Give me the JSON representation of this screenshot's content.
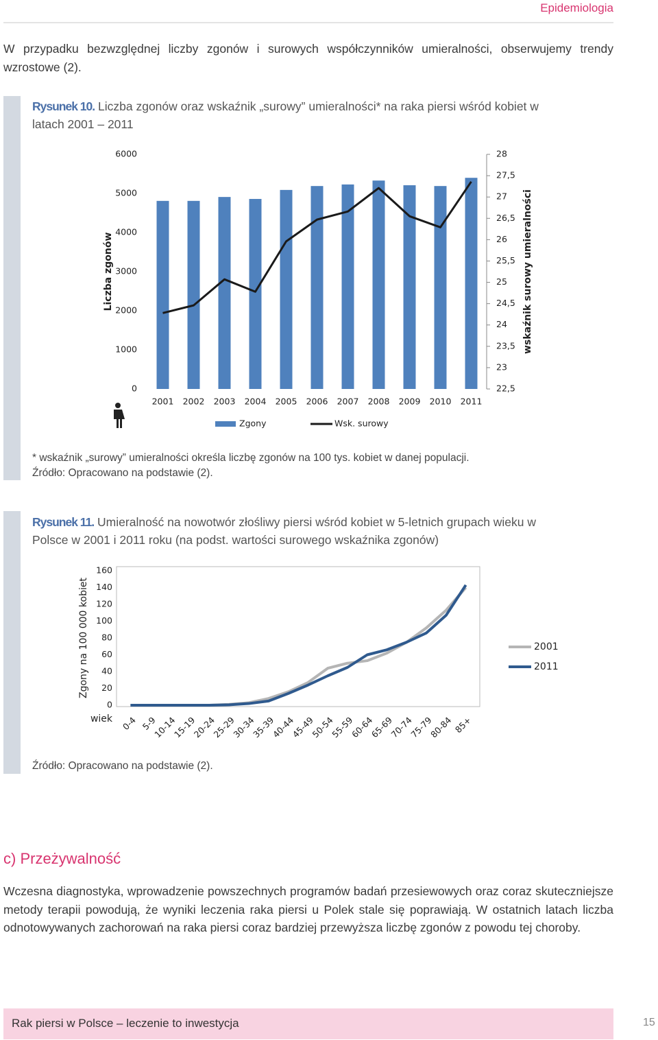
{
  "header": {
    "section": "Epidemiologia"
  },
  "intro": "W przypadku bezwzględnej liczby zgonów i surowych współczynników umieralności, obserwujemy trendy wzrostowe (2).",
  "figures": [
    {
      "label": "Rysunek 10.",
      "caption": "Liczba zgonów oraz wskaźnik „surowy” umieralności* na raka piersi wśród kobiet w latach 2001 – 2011",
      "note": "* wskaźnik „surowy” umieralności określa liczbę zgonów na 100 tys. kobiet w danej populacji.",
      "source": "Źródło: Opracowano na podstawie (2)."
    },
    {
      "label": "Rysunek 11.",
      "caption": "Umieralność na nowotwór złośliwy piersi wśród kobiet w 5-letnich grupach wieku w Polsce w 2001 i 2011 roku (na podst. wartości surowego wskaźnika zgonów)",
      "source": "Źródło: Opracowano na podstawie (2)."
    }
  ],
  "chart_data": [
    {
      "type": "bar",
      "categories": [
        "2001",
        "2002",
        "2003",
        "2004",
        "2005",
        "2006",
        "2007",
        "2008",
        "2009",
        "2010",
        "2011"
      ],
      "series": [
        {
          "name": "Zgony",
          "type": "bar",
          "color": "#4f81bd",
          "values": [
            4810,
            4810,
            4910,
            4860,
            5090,
            5190,
            5230,
            5330,
            5210,
            5190,
            5400
          ]
        },
        {
          "name": "Wsk. surowy",
          "type": "line",
          "axis": "y2",
          "color": "#1a1a1a",
          "values": [
            24.28,
            24.46,
            25.07,
            24.78,
            25.96,
            26.47,
            26.66,
            27.21,
            26.55,
            26.29,
            27.36
          ]
        }
      ],
      "ylabel": "Liczba zgonów",
      "y2label": "wskaźnik surowy umieralności",
      "ylim": [
        0,
        6000
      ],
      "yticks": [
        0,
        1000,
        2000,
        3000,
        4000,
        5000,
        6000
      ],
      "y2lim": [
        22.5,
        28
      ],
      "y2ticks": [
        {
          "value": 22.5,
          "label": "22,5"
        },
        23,
        {
          "value": 23.5,
          "label": "23,5"
        },
        24,
        {
          "value": 24.5,
          "label": "24,5"
        },
        25,
        {
          "value": 25.5,
          "label": "25,5"
        },
        26,
        {
          "value": 26.5,
          "label": "26,5"
        },
        27,
        {
          "value": 27.5,
          "label": "27,5"
        },
        28
      ],
      "legend": "bottom"
    },
    {
      "type": "line",
      "categories": [
        "0-4",
        "5-9",
        "10-14",
        "15-19",
        "20-24",
        "25-29",
        "30-34",
        "35-39",
        "40-44",
        "45-49",
        "50-54",
        "55-59",
        "60-64",
        "65-69",
        "70-74",
        "75-79",
        "80-84",
        "85+"
      ],
      "series": [
        {
          "name": "2001",
          "color": "#b5b5b5",
          "values": [
            0,
            0,
            0,
            0,
            0,
            1,
            3,
            8,
            16,
            27,
            44,
            50,
            53,
            62,
            75,
            92,
            113,
            140
          ]
        },
        {
          "name": "2011",
          "color": "#2f5a8e",
          "values": [
            0,
            0,
            0,
            0,
            0,
            0.5,
            2,
            5,
            14,
            24,
            35,
            45,
            60,
            66,
            75,
            86,
            107,
            143
          ]
        }
      ],
      "xlabel": "wiek",
      "ylabel": "Zgony na 100 000 kobiet",
      "ylim": [
        0,
        160
      ],
      "yticks": [
        0,
        20,
        40,
        60,
        80,
        100,
        120,
        140,
        160
      ],
      "legend": "right"
    }
  ],
  "section": {
    "title": "c) Przeżywalność",
    "body": "Wczesna diagnostyka, wprowadzenie powszechnych programów badań przesiewowych oraz coraz skuteczniejsze metody terapii powodują, że wyniki leczenia raka piersi u Polek stale się poprawiają. W ostatnich latach liczba odnotowywanych zachorowań na raka piersi coraz bardziej przewyższa liczbę zgonów z powodu tej choroby."
  },
  "footer": {
    "title": "Rak piersi w Polsce – leczenie to inwestycja",
    "page": 15
  }
}
